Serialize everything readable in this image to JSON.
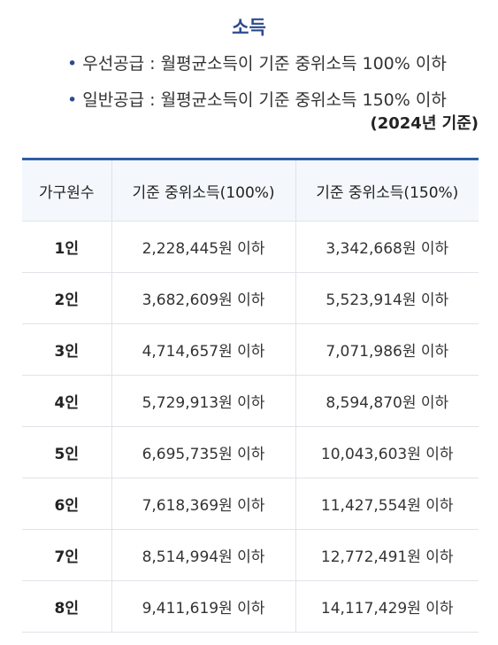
{
  "title": "소득",
  "bullets": [
    "우선공급 : 월평균소득이 기준 중위소득 100% 이하",
    "일반공급 : 월평균소득이 기준 중위소득 150% 이하"
  ],
  "bullet_marker": "•",
  "year_note": "(2024년 기준)",
  "table": {
    "headers": [
      "가구원수",
      "기준 중위소득(100%)",
      "기준 중위소득(150%)"
    ],
    "rows": [
      [
        "1인",
        "2,228,445원 이하",
        "3,342,668원 이하"
      ],
      [
        "2인",
        "3,682,609원 이하",
        "5,523,914원 이하"
      ],
      [
        "3인",
        "4,714,657원 이하",
        "7,071,986원 이하"
      ],
      [
        "4인",
        "5,729,913원 이하",
        "8,594,870원 이하"
      ],
      [
        "5인",
        "6,695,735원 이하",
        "10,043,603원 이하"
      ],
      [
        "6인",
        "7,618,369원 이하",
        "11,427,554원 이하"
      ],
      [
        "7인",
        "8,514,994원 이하",
        "12,772,491원 이하"
      ],
      [
        "8인",
        "9,411,619원 이하",
        "14,117,429원 이하"
      ]
    ]
  },
  "colors": {
    "accent": "#2e4a8f",
    "table_top_border": "#2e5fa6",
    "header_bg": "#f4f8fd",
    "grid": "#dfe3e8"
  }
}
